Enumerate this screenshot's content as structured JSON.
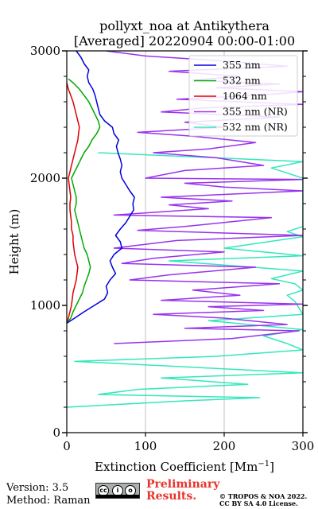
{
  "chart_data": {
    "type": "line",
    "title_line1": "pollyxt_noa at Antikythera",
    "title_line2": "[Averaged] 20220904 00:00-01:00",
    "xlabel": "Extinction Coefficient [Mm",
    "xlabel_sup": "−1",
    "xlabel_end": "]",
    "ylabel": "Height (m)",
    "xlim": [
      0,
      300
    ],
    "ylim": [
      0,
      3000
    ],
    "x_ticks": [
      "0",
      "100",
      "200",
      "300"
    ],
    "y_ticks": [
      "0",
      "1000",
      "2000",
      "3000"
    ],
    "grid": "vertical",
    "legend_position": "top-right",
    "series": [
      {
        "name": "355 nm",
        "color": "#0000dd",
        "points": [
          [
            0,
            860
          ],
          [
            10,
            900
          ],
          [
            22,
            950
          ],
          [
            35,
            1000
          ],
          [
            48,
            1050
          ],
          [
            52,
            1100
          ],
          [
            50,
            1150
          ],
          [
            55,
            1200
          ],
          [
            62,
            1250
          ],
          [
            58,
            1300
          ],
          [
            55,
            1350
          ],
          [
            60,
            1400
          ],
          [
            70,
            1450
          ],
          [
            68,
            1500
          ],
          [
            62,
            1550
          ],
          [
            68,
            1600
          ],
          [
            75,
            1650
          ],
          [
            80,
            1700
          ],
          [
            85,
            1750
          ],
          [
            84,
            1800
          ],
          [
            86,
            1850
          ],
          [
            80,
            1900
          ],
          [
            75,
            1950
          ],
          [
            70,
            2000
          ],
          [
            68,
            2050
          ],
          [
            70,
            2100
          ],
          [
            68,
            2150
          ],
          [
            65,
            2200
          ],
          [
            63,
            2250
          ],
          [
            66,
            2300
          ],
          [
            60,
            2350
          ],
          [
            58,
            2400
          ],
          [
            48,
            2450
          ],
          [
            42,
            2500
          ],
          [
            40,
            2550
          ],
          [
            38,
            2600
          ],
          [
            36,
            2650
          ],
          [
            33,
            2700
          ],
          [
            28,
            2750
          ],
          [
            26,
            2800
          ],
          [
            28,
            2850
          ],
          [
            22,
            2900
          ],
          [
            18,
            2950
          ],
          [
            12,
            3000
          ]
        ]
      },
      {
        "name": "532 nm",
        "color": "#00aa00",
        "points": [
          [
            0,
            860
          ],
          [
            5,
            900
          ],
          [
            8,
            950
          ],
          [
            12,
            1000
          ],
          [
            16,
            1050
          ],
          [
            20,
            1100
          ],
          [
            22,
            1150
          ],
          [
            25,
            1200
          ],
          [
            28,
            1250
          ],
          [
            30,
            1300
          ],
          [
            28,
            1350
          ],
          [
            26,
            1400
          ],
          [
            22,
            1450
          ],
          [
            20,
            1500
          ],
          [
            18,
            1550
          ],
          [
            16,
            1600
          ],
          [
            14,
            1650
          ],
          [
            12,
            1700
          ],
          [
            10,
            1750
          ],
          [
            12,
            1800
          ],
          [
            12,
            1850
          ],
          [
            10,
            1900
          ],
          [
            8,
            1950
          ],
          [
            6,
            2000
          ],
          [
            10,
            2050
          ],
          [
            14,
            2100
          ],
          [
            18,
            2150
          ],
          [
            22,
            2200
          ],
          [
            28,
            2250
          ],
          [
            32,
            2300
          ],
          [
            38,
            2350
          ],
          [
            42,
            2400
          ],
          [
            40,
            2450
          ],
          [
            36,
            2500
          ],
          [
            32,
            2550
          ],
          [
            28,
            2600
          ],
          [
            22,
            2650
          ],
          [
            16,
            2700
          ],
          [
            8,
            2750
          ],
          [
            2,
            2780
          ]
        ]
      },
      {
        "name": "1064 nm",
        "color": "#dd0000",
        "points": [
          [
            0,
            860
          ],
          [
            2,
            900
          ],
          [
            4,
            950
          ],
          [
            6,
            1000
          ],
          [
            7,
            1050
          ],
          [
            8,
            1100
          ],
          [
            10,
            1150
          ],
          [
            12,
            1200
          ],
          [
            13,
            1250
          ],
          [
            14,
            1300
          ],
          [
            12,
            1350
          ],
          [
            10,
            1400
          ],
          [
            9,
            1450
          ],
          [
            8,
            1500
          ],
          [
            8,
            1550
          ],
          [
            6,
            1600
          ],
          [
            6,
            1650
          ],
          [
            5,
            1700
          ],
          [
            4,
            1750
          ],
          [
            4,
            1800
          ],
          [
            5,
            1850
          ],
          [
            4,
            1900
          ],
          [
            3,
            1950
          ],
          [
            2,
            2000
          ],
          [
            4,
            2050
          ],
          [
            6,
            2100
          ],
          [
            8,
            2150
          ],
          [
            10,
            2200
          ],
          [
            12,
            2250
          ],
          [
            14,
            2300
          ],
          [
            15,
            2350
          ],
          [
            16,
            2400
          ],
          [
            14,
            2450
          ],
          [
            12,
            2500
          ],
          [
            10,
            2550
          ],
          [
            8,
            2600
          ],
          [
            5,
            2650
          ],
          [
            2,
            2700
          ],
          [
            0,
            2750
          ]
        ]
      },
      {
        "name": "355 nm (NR)",
        "color": "#9933ee",
        "points": [
          [
            60,
            700
          ],
          [
            210,
            740
          ],
          [
            295,
            800
          ],
          [
            150,
            820
          ],
          [
            280,
            850
          ],
          [
            200,
            900
          ],
          [
            110,
            930
          ],
          [
            250,
            960
          ],
          [
            180,
            990
          ],
          [
            300,
            1010
          ],
          [
            120,
            1040
          ],
          [
            220,
            1080
          ],
          [
            160,
            1120
          ],
          [
            270,
            1170
          ],
          [
            80,
            1200
          ],
          [
            130,
            1240
          ],
          [
            240,
            1300
          ],
          [
            70,
            1330
          ],
          [
            110,
            1370
          ],
          [
            200,
            1420
          ],
          [
            60,
            1450
          ],
          [
            140,
            1510
          ],
          [
            300,
            1550
          ],
          [
            90,
            1590
          ],
          [
            150,
            1620
          ],
          [
            260,
            1690
          ],
          [
            60,
            1710
          ],
          [
            180,
            1760
          ],
          [
            130,
            1790
          ],
          [
            210,
            1820
          ],
          [
            120,
            1850
          ],
          [
            300,
            1900
          ],
          [
            200,
            1930
          ],
          [
            150,
            1960
          ],
          [
            300,
            1990
          ],
          [
            100,
            2000
          ],
          [
            150,
            2060
          ],
          [
            250,
            2100
          ],
          [
            190,
            2160
          ],
          [
            110,
            2200
          ],
          [
            180,
            2230
          ],
          [
            240,
            2280
          ],
          [
            160,
            2330
          ],
          [
            90,
            2360
          ],
          [
            200,
            2400
          ],
          [
            150,
            2440
          ],
          [
            270,
            2480
          ],
          [
            120,
            2520
          ],
          [
            170,
            2550
          ],
          [
            300,
            2580
          ],
          [
            140,
            2620
          ],
          [
            240,
            2650
          ],
          [
            300,
            2680
          ],
          [
            190,
            2710
          ],
          [
            270,
            2740
          ],
          [
            160,
            2770
          ],
          [
            220,
            2800
          ],
          [
            130,
            2840
          ],
          [
            280,
            2880
          ],
          [
            200,
            2920
          ],
          [
            100,
            2960
          ],
          [
            50,
            3000
          ]
        ]
      },
      {
        "name": "532 nm (NR)",
        "color": "#33e8bb",
        "points": [
          [
            0,
            200
          ],
          [
            150,
            250
          ],
          [
            245,
            275
          ],
          [
            40,
            300
          ],
          [
            90,
            340
          ],
          [
            230,
            380
          ],
          [
            120,
            430
          ],
          [
            300,
            470
          ],
          [
            140,
            520
          ],
          [
            10,
            560
          ],
          [
            190,
            600
          ],
          [
            300,
            650
          ],
          [
            280,
            700
          ],
          [
            250,
            760
          ],
          [
            300,
            810
          ],
          [
            180,
            880
          ],
          [
            300,
            930
          ],
          [
            290,
            1030
          ],
          [
            280,
            1080
          ],
          [
            300,
            1120
          ],
          [
            290,
            1170
          ],
          [
            260,
            1210
          ],
          [
            300,
            1270
          ],
          [
            130,
            1350
          ],
          [
            300,
            1390
          ],
          [
            200,
            1450
          ],
          [
            300,
            1540
          ],
          [
            280,
            1580
          ],
          [
            300,
            1620
          ],
          [
            300,
            2000
          ],
          [
            260,
            2080
          ],
          [
            300,
            2130
          ],
          [
            40,
            2200
          ]
        ]
      }
    ]
  },
  "footer": {
    "version": "Version: 3.5",
    "method": "Method: Raman",
    "preliminary_line1": "Preliminary",
    "preliminary_line2": "Results.",
    "copyright_line1": "© TROPOS & NOA 2022.",
    "copyright_line2": "CC BY SA 4.0 License.",
    "license_badge_text": [
      "cc",
      "i",
      "o",
      "BY",
      "SA"
    ]
  }
}
